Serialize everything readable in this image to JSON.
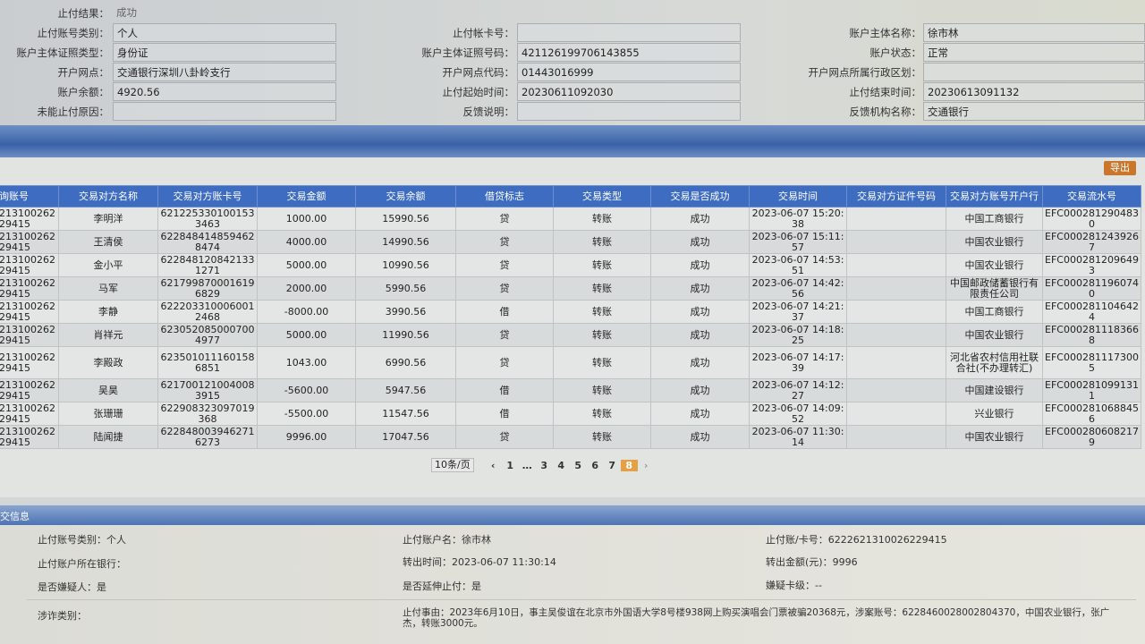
{
  "info": {
    "rows": [
      {
        "l1": "止付结果：",
        "v1": "成功"
      },
      {
        "l1": "止付账号类别：",
        "v1": "个人",
        "l2": "止付帐卡号：",
        "v2": "",
        "l3": "账户主体名称：",
        "v3": "徐市林"
      },
      {
        "l1": "账户主体证照类型：",
        "v1": "身份证",
        "l2": "账户主体证照号码：",
        "v2": "421126199706143855",
        "l3": "账户状态：",
        "v3": "正常"
      },
      {
        "l1": "开户网点：",
        "v1": "交通银行深圳八卦岭支行",
        "l2": "开户网点代码：",
        "v2": "01443016999",
        "l3": "开户网点所属行政区划：",
        "v3": ""
      },
      {
        "l1": "账户余额：",
        "v1": "4920.56",
        "l2": "止付起始时间：",
        "v2": "20230611092030",
        "l3": "止付结束时间：",
        "v3": "20230613091132"
      },
      {
        "l1": "未能止付原因：",
        "v1": "",
        "l2": "反馈说明：",
        "v2": "",
        "l3": "反馈机构名称：",
        "v3": "交通银行"
      }
    ]
  },
  "toolbar": {
    "export_label": "导出"
  },
  "table": {
    "headers": [
      "询账号",
      "交易对方名称",
      "交易对方账卡号",
      "交易金额",
      "交易余额",
      "借贷标志",
      "交易类型",
      "交易是否成功",
      "交易时间",
      "交易对方证件号码",
      "交易对方账号开户行",
      "交易流水号"
    ],
    "rows": [
      [
        "21310026229415",
        "李明洋",
        "6212253301001533463",
        "1000.00",
        "15990.56",
        "贷",
        "转账",
        "成功",
        "2023-06-07 15:20:38",
        "",
        "中国工商银行",
        "EFC0002812904830"
      ],
      [
        "21310026229415",
        "王清侯",
        "6228484148594628474",
        "4000.00",
        "14990.56",
        "贷",
        "转账",
        "成功",
        "2023-06-07 15:11:57",
        "",
        "中国农业银行",
        "EFC0002812439267"
      ],
      [
        "21310026229415",
        "金小平",
        "6228481208421331271",
        "5000.00",
        "10990.56",
        "贷",
        "转账",
        "成功",
        "2023-06-07 14:53:51",
        "",
        "中国农业银行",
        "EFC0002812096493"
      ],
      [
        "21310026229415",
        "马军",
        "6217998700016196829",
        "2000.00",
        "5990.56",
        "贷",
        "转账",
        "成功",
        "2023-06-07 14:42:56",
        "",
        "中国邮政储蓄银行有限责任公司",
        "EFC0002811960740"
      ],
      [
        "21310026229415",
        "李静",
        "6222033100060012468",
        "-8000.00",
        "3990.56",
        "借",
        "转账",
        "成功",
        "2023-06-07 14:21:37",
        "",
        "中国工商银行",
        "EFC0002811046424"
      ],
      [
        "21310026229415",
        "肖祥元",
        "6230520850007004977",
        "5000.00",
        "11990.56",
        "贷",
        "转账",
        "成功",
        "2023-06-07 14:18:25",
        "",
        "中国农业银行",
        "EFC0002811183668"
      ],
      [
        "21310026229415",
        "李殿政",
        "6235010111601586851",
        "1043.00",
        "6990.56",
        "贷",
        "转账",
        "成功",
        "2023-06-07 14:17:39",
        "",
        "河北省农村信用社联合社(不办理转汇)",
        "EFC0002811173005"
      ],
      [
        "21310026229415",
        "吴昊",
        "6217001210040083915",
        "-5600.00",
        "5947.56",
        "借",
        "转账",
        "成功",
        "2023-06-07 14:12:27",
        "",
        "中国建设银行",
        "EFC0002810991311"
      ],
      [
        "21310026229415",
        "张珊珊",
        "622908323097019368",
        "-5500.00",
        "11547.56",
        "借",
        "转账",
        "成功",
        "2023-06-07 14:09:52",
        "",
        "兴业银行",
        "EFC0002810688456"
      ],
      [
        "21310026229415",
        "陆闻捷",
        "6228480039462716273",
        "9996.00",
        "17047.56",
        "贷",
        "转账",
        "成功",
        "2023-06-07 11:30:14",
        "",
        "中国农业银行",
        "EFC0002806082179"
      ]
    ]
  },
  "pager": {
    "page_size": "10条/页",
    "pages": [
      "1",
      "…",
      "3",
      "4",
      "5",
      "6",
      "7",
      "8"
    ],
    "current": "8"
  },
  "detail": {
    "section_title": "交信息",
    "acct_type": "止付账号类别：个人",
    "acct_name": "止付账户名：徐市林",
    "acct_no": "止付账/卡号：6222621310026229415",
    "bank": "止付账户所在银行：",
    "out_time": "转出时间：2023-06-07 11:30:14",
    "out_amount": "转出金额(元)：9996",
    "suspect": "是否嫌疑人：是",
    "extend": "是否延伸止付：是",
    "card_level": "嫌疑卡级：--",
    "fraud_type": "涉诈类别：",
    "reason": "止付事由：2023年6月10日，事主吴俊谊在北京市外国语大学8号楼938网上购买演唱会门票被骗20368元，涉案账号：6228460028002804370，中国农业银行，张广杰，转账3000元。"
  },
  "colors": {
    "header_blue": "#3e6cc0",
    "export_orange": "#c9772c",
    "current_page": "#e3a045"
  }
}
